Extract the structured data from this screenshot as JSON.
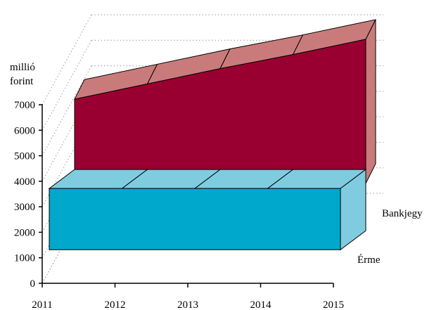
{
  "chart_data": {
    "type": "area",
    "ylabel": [
      "millió",
      "forint"
    ],
    "categories": [
      "2011",
      "2012",
      "2013",
      "2014",
      "2015"
    ],
    "yticks": [
      "0",
      "1000",
      "2000",
      "3000",
      "4000",
      "5000",
      "6000",
      "7000"
    ],
    "ylim": [
      0,
      7000
    ],
    "grid": true,
    "series": [
      {
        "name": "Bankjegy",
        "values": [
          5700,
          6300,
          6900,
          7450,
          8050
        ],
        "base": 2400,
        "color": "#990031",
        "top_color": "#c97b7b"
      },
      {
        "name": "Érme",
        "values": [
          3000,
          3000,
          3000,
          3000,
          3000
        ],
        "base": 600,
        "color": "#00a8cc",
        "top_color": "#7fcce0"
      }
    ]
  }
}
